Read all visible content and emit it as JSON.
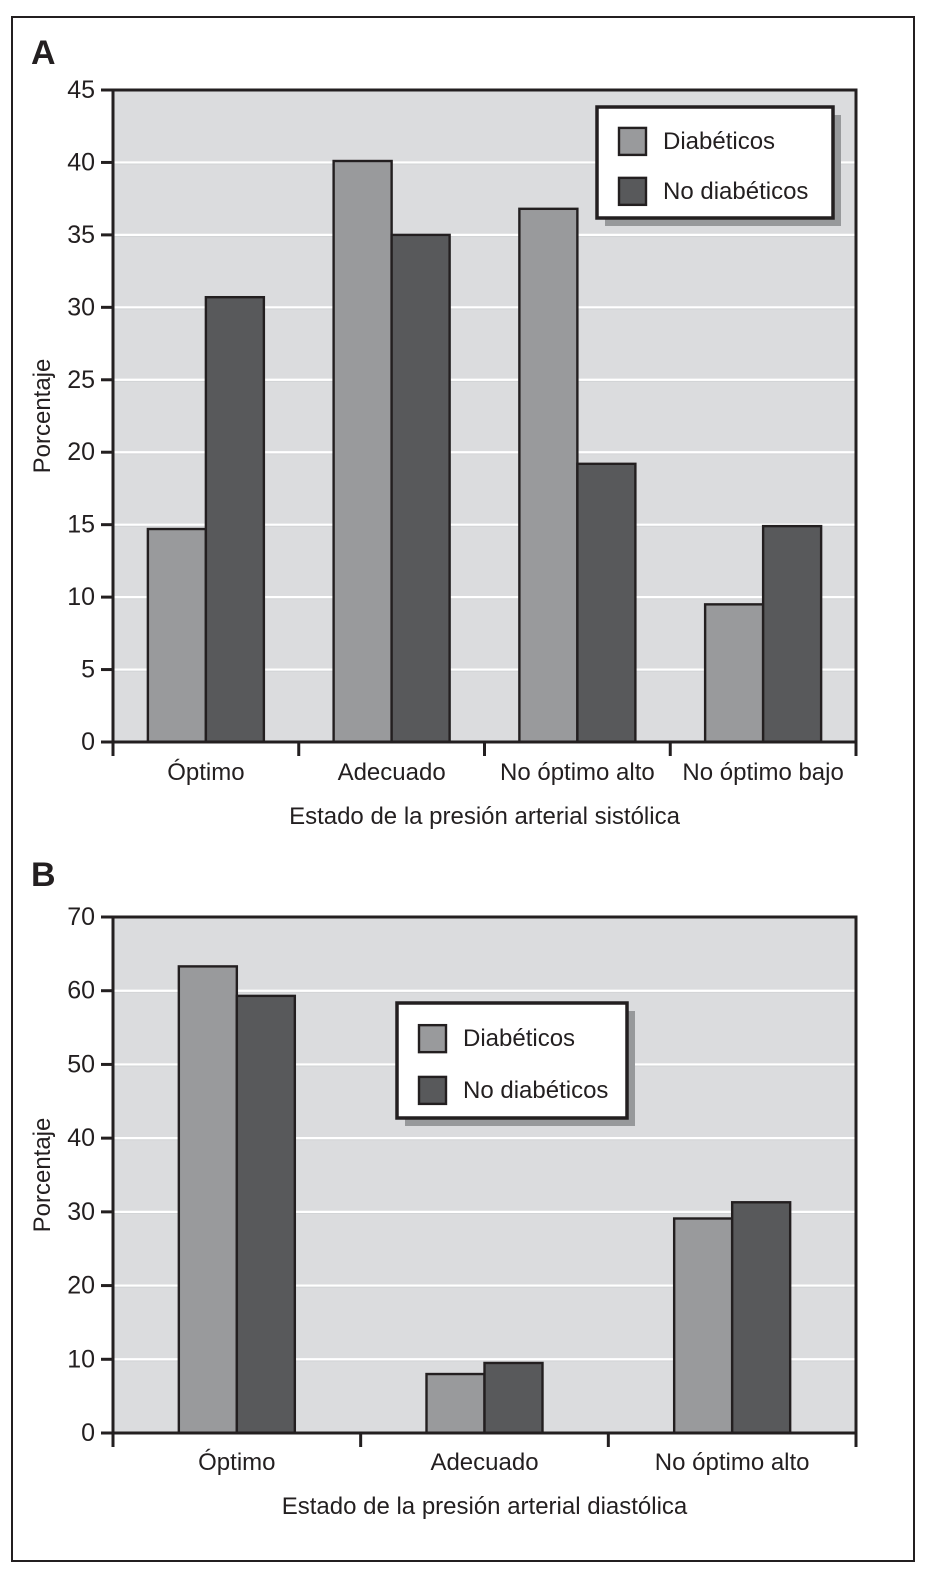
{
  "figure": {
    "panel_a": {
      "label": "A"
    },
    "panel_b": {
      "label": "B"
    }
  },
  "legend": {
    "items": [
      "Diabéticos",
      "No diabéticos"
    ]
  },
  "colors": {
    "diabeticos_bar": "#999a9c",
    "no_diabeticos_bar": "#58595b",
    "plot_background": "#dbdcde",
    "gridline": "#ffffff",
    "gridline_shadow": "#cfd1d3",
    "axis_line": "#231f20",
    "legend_background": "#ffffff",
    "legend_border": "#231f20",
    "legend_shadow": "#97999b",
    "text": "#231f20"
  },
  "chart_data": [
    {
      "id": "A",
      "type": "bar",
      "categories": [
        "Óptimo",
        "Adecuado",
        "No óptimo alto",
        "No óptimo bajo"
      ],
      "series": [
        {
          "name": "Diabéticos",
          "values": [
            14.7,
            40.1,
            36.8,
            9.5
          ]
        },
        {
          "name": "No diabéticos",
          "values": [
            30.7,
            35.0,
            19.2,
            14.9
          ]
        }
      ],
      "xlabel": "Estado de la presión arterial sistólica",
      "ylabel": "Porcentaje",
      "ylim": [
        0,
        45
      ],
      "ytick_step": 5,
      "yticks": [
        0,
        5,
        10,
        15,
        20,
        25,
        30,
        35,
        40,
        45
      ],
      "grid": true,
      "legend_position": "top-right"
    },
    {
      "id": "B",
      "type": "bar",
      "categories": [
        "Óptimo",
        "Adecuado",
        "No óptimo alto"
      ],
      "series": [
        {
          "name": "Diabéticos",
          "values": [
            63.3,
            8.0,
            29.1
          ]
        },
        {
          "name": "No diabéticos",
          "values": [
            59.3,
            9.5,
            31.3
          ]
        }
      ],
      "xlabel": "Estado de la presión arterial diastólica",
      "ylabel": "Porcentaje",
      "ylim": [
        0,
        70
      ],
      "ytick_step": 10,
      "yticks": [
        0,
        10,
        20,
        30,
        40,
        50,
        60,
        70
      ],
      "grid": true,
      "legend_position": "upper-middle"
    }
  ]
}
